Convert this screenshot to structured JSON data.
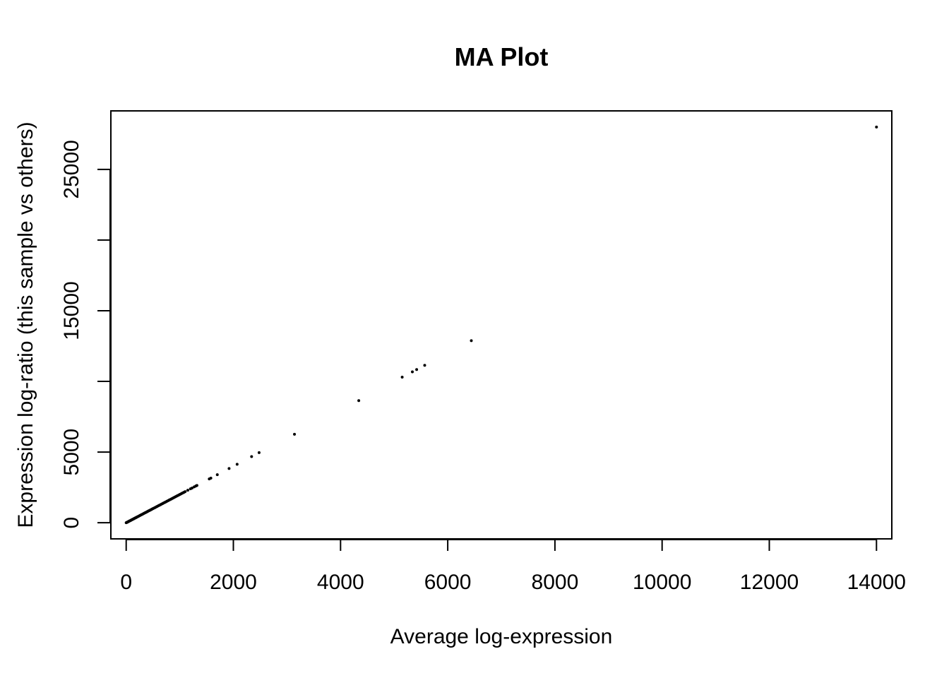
{
  "chart_data": {
    "type": "scatter",
    "title": "MA Plot",
    "xlabel": "Average log-expression",
    "ylabel": "Expression log-ratio (this sample vs others)",
    "xlim": [
      -286,
      14286
    ],
    "ylim": [
      -1140,
      29140
    ],
    "x_ticks": [
      0,
      2000,
      4000,
      6000,
      8000,
      10000,
      12000,
      14000
    ],
    "x_tick_labels": [
      "0",
      "2000",
      "4000",
      "6000",
      "8000",
      "10000",
      "12000",
      "14000"
    ],
    "y_ticks": [
      0,
      5000,
      10000,
      15000,
      20000,
      25000
    ],
    "y_tick_labels": [
      "0",
      "5000",
      "",
      "15000",
      "",
      "25000"
    ],
    "grid": false,
    "marker_color": "#000000",
    "series": [
      {
        "points": [
          [
            0,
            0
          ],
          [
            10,
            20
          ],
          [
            20,
            40
          ],
          [
            30,
            60
          ],
          [
            40,
            80
          ],
          [
            50,
            100
          ],
          [
            60,
            120
          ],
          [
            70,
            140
          ],
          [
            80,
            160
          ],
          [
            90,
            180
          ],
          [
            100,
            200
          ],
          [
            110,
            220
          ],
          [
            120,
            240
          ],
          [
            130,
            260
          ],
          [
            140,
            280
          ],
          [
            150,
            300
          ],
          [
            160,
            320
          ],
          [
            170,
            340
          ],
          [
            180,
            360
          ],
          [
            190,
            380
          ],
          [
            200,
            400
          ],
          [
            215,
            430
          ],
          [
            230,
            460
          ],
          [
            245,
            490
          ],
          [
            260,
            520
          ],
          [
            275,
            550
          ],
          [
            290,
            580
          ],
          [
            305,
            610
          ],
          [
            320,
            640
          ],
          [
            335,
            670
          ],
          [
            350,
            700
          ],
          [
            365,
            730
          ],
          [
            380,
            760
          ],
          [
            395,
            790
          ],
          [
            410,
            820
          ],
          [
            425,
            850
          ],
          [
            440,
            880
          ],
          [
            455,
            910
          ],
          [
            470,
            940
          ],
          [
            485,
            970
          ],
          [
            500,
            1000
          ],
          [
            520,
            1040
          ],
          [
            540,
            1080
          ],
          [
            560,
            1120
          ],
          [
            580,
            1160
          ],
          [
            600,
            1200
          ],
          [
            620,
            1240
          ],
          [
            640,
            1280
          ],
          [
            660,
            1320
          ],
          [
            680,
            1360
          ],
          [
            700,
            1400
          ],
          [
            720,
            1440
          ],
          [
            740,
            1480
          ],
          [
            760,
            1520
          ],
          [
            780,
            1560
          ],
          [
            800,
            1600
          ],
          [
            820,
            1640
          ],
          [
            840,
            1680
          ],
          [
            860,
            1720
          ],
          [
            880,
            1760
          ],
          [
            900,
            1800
          ],
          [
            920,
            1840
          ],
          [
            940,
            1880
          ],
          [
            960,
            1920
          ],
          [
            980,
            1960
          ],
          [
            1000,
            2000
          ],
          [
            1020,
            2040
          ],
          [
            1040,
            2080
          ],
          [
            1060,
            2120
          ],
          [
            1080,
            2160
          ],
          [
            1100,
            2200
          ],
          [
            1150,
            2300
          ],
          [
            1200,
            2400
          ],
          [
            1230,
            2460
          ],
          [
            1270,
            2540
          ],
          [
            1300,
            2600
          ],
          [
            1320,
            2640
          ],
          [
            1550,
            3100
          ],
          [
            1580,
            3160
          ],
          [
            1700,
            3400
          ],
          [
            1920,
            3840
          ],
          [
            2070,
            4140
          ],
          [
            2340,
            4680
          ],
          [
            2480,
            4960
          ],
          [
            3140,
            6260
          ],
          [
            4340,
            8640
          ],
          [
            5150,
            10300
          ],
          [
            5340,
            10680
          ],
          [
            5420,
            10840
          ],
          [
            5570,
            11140
          ],
          [
            6440,
            12880
          ],
          [
            14000,
            28000
          ]
        ]
      }
    ]
  }
}
